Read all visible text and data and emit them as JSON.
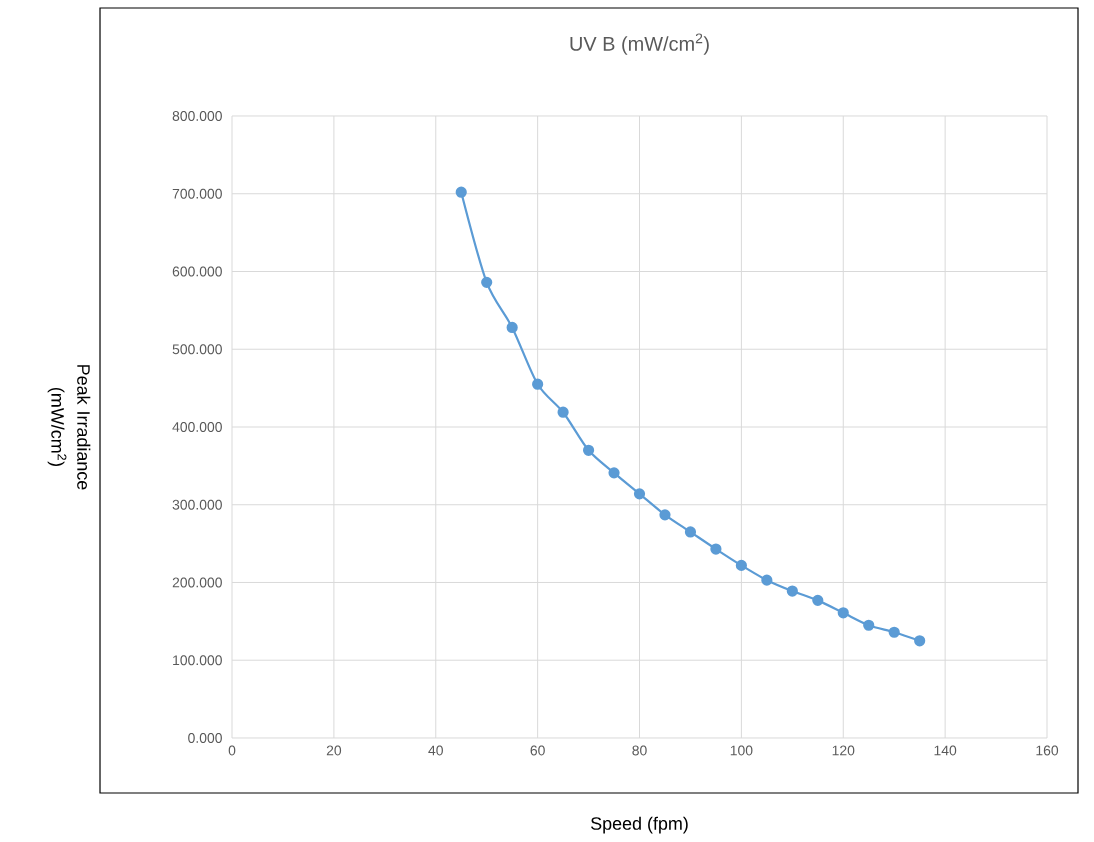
{
  "chart_data": {
    "type": "line",
    "title": "UV B (mW/cm$^{2}$)",
    "xlabel": "Speed (fpm)",
    "ylabel": "Peak Irradiance (mW/cm$^{2}$)",
    "x": [
      45,
      50,
      55,
      60,
      65,
      70,
      75,
      80,
      85,
      90,
      95,
      100,
      105,
      110,
      115,
      120,
      125,
      130,
      135
    ],
    "series": [
      {
        "color": "#5b9bd5",
        "values": [
          702,
          586,
          528,
          455,
          419,
          370,
          341,
          314,
          287,
          265,
          243,
          222,
          203,
          189,
          177,
          161,
          145,
          136,
          125
        ]
      }
    ],
    "xlim": [
      0,
      160
    ],
    "xticks": [
      0,
      20,
      40,
      60,
      80,
      100,
      120,
      140,
      160
    ],
    "ylim": [
      0,
      800
    ],
    "yticks": [
      {
        "value": 0,
        "label": "0.000"
      },
      {
        "value": 100,
        "label": "100.000"
      },
      {
        "value": 200,
        "label": "200.000"
      },
      {
        "value": 300,
        "label": "300.000"
      },
      {
        "value": 400,
        "label": "400.000"
      },
      {
        "value": 500,
        "label": "500.000"
      },
      {
        "value": 600,
        "label": "600.000"
      },
      {
        "value": 700,
        "label": "700.000"
      },
      {
        "value": 800,
        "label": "800.000"
      }
    ],
    "grid": true,
    "marker": "circle",
    "line_style": "solid"
  }
}
